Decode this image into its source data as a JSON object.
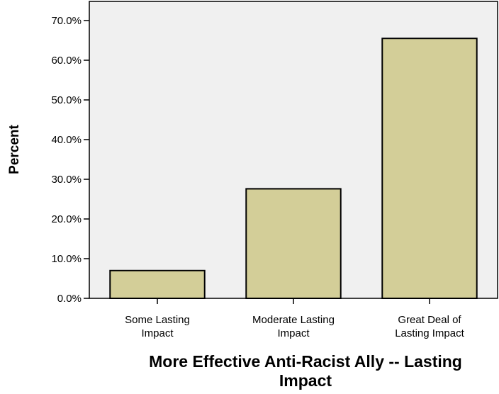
{
  "chart_data": {
    "type": "bar",
    "categories": [
      [
        "Some Lasting",
        "Impact"
      ],
      [
        "Moderate Lasting",
        "Impact"
      ],
      [
        "Great Deal of",
        "Lasting Impact"
      ]
    ],
    "values": [
      7.0,
      27.6,
      65.5
    ],
    "xlabel": [
      "More Effective Anti-Racist Ally -- Lasting",
      "Impact"
    ],
    "ylabel": "Percent",
    "ylim": [
      0,
      70
    ],
    "yticks": [
      0,
      10,
      20,
      30,
      40,
      50,
      60,
      70
    ],
    "ytick_labels": [
      "0.0%",
      "10.0%",
      "20.0%",
      "30.0%",
      "40.0%",
      "50.0%",
      "60.0%",
      "70.0%"
    ],
    "grid": false,
    "colors": {
      "plot_background": "#f0f0f0",
      "bar_fill": "#d3ce98",
      "bar_stroke": "#000000"
    }
  }
}
